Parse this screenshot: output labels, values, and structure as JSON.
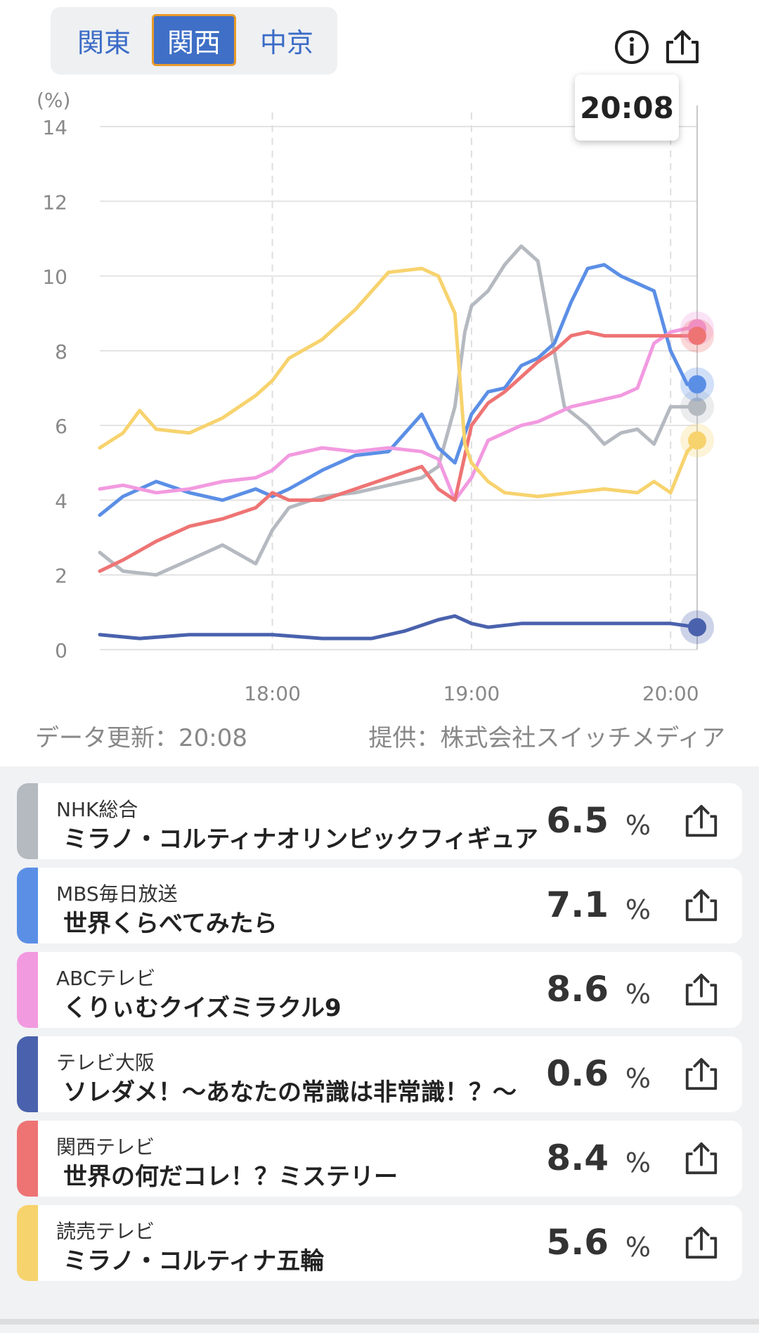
{
  "tabs": [
    {
      "label": "関東",
      "selected": false
    },
    {
      "label": "関西",
      "selected": true
    },
    {
      "label": "中京",
      "selected": false
    }
  ],
  "tooltip_time": "20:08",
  "footer": {
    "updated": "データ更新：20:08",
    "provider": "提供：株式会社スイッチメディア"
  },
  "chart_data": {
    "type": "line",
    "y_unit_label": "(%)",
    "ylim": [
      0,
      14
    ],
    "y_ticks": [
      0,
      2,
      4,
      6,
      8,
      10,
      12,
      14
    ],
    "x_ticks": [
      "18:00",
      "19:00",
      "20:00"
    ],
    "x_range": [
      "17:08",
      "20:08"
    ],
    "current_time": "20:08",
    "grid": true,
    "series": [
      {
        "name": "NHK総合",
        "color": "#b5b9c0",
        "x": [
          "17:08",
          "17:15",
          "17:25",
          "17:35",
          "17:45",
          "17:55",
          "18:00",
          "18:05",
          "18:15",
          "18:25",
          "18:35",
          "18:45",
          "18:50",
          "18:55",
          "18:58",
          "19:00",
          "19:05",
          "19:10",
          "19:15",
          "19:20",
          "19:28",
          "19:35",
          "19:40",
          "19:45",
          "19:50",
          "19:55",
          "20:00",
          "20:05",
          "20:08"
        ],
        "y": [
          2.6,
          2.1,
          2.0,
          2.4,
          2.8,
          2.3,
          3.2,
          3.8,
          4.1,
          4.2,
          4.4,
          4.6,
          4.9,
          6.5,
          8.5,
          9.2,
          9.6,
          10.3,
          10.8,
          10.4,
          6.5,
          6.0,
          5.5,
          5.8,
          5.9,
          5.5,
          6.5,
          6.5,
          6.5
        ]
      },
      {
        "name": "MBS毎日放送",
        "color": "#5b8fe6",
        "x": [
          "17:08",
          "17:15",
          "17:25",
          "17:35",
          "17:45",
          "17:55",
          "18:00",
          "18:05",
          "18:15",
          "18:25",
          "18:35",
          "18:45",
          "18:50",
          "18:55",
          "19:00",
          "19:05",
          "19:10",
          "19:15",
          "19:20",
          "19:25",
          "19:30",
          "19:35",
          "19:40",
          "19:45",
          "19:50",
          "19:55",
          "20:00",
          "20:05",
          "20:08"
        ],
        "y": [
          3.6,
          4.1,
          4.5,
          4.2,
          4.0,
          4.3,
          4.1,
          4.3,
          4.8,
          5.2,
          5.3,
          6.3,
          5.4,
          5.0,
          6.3,
          6.9,
          7.0,
          7.6,
          7.8,
          8.2,
          9.3,
          10.2,
          10.3,
          10.0,
          9.8,
          9.6,
          8.0,
          7.1,
          7.1
        ]
      },
      {
        "name": "ABCテレビ",
        "color": "#f29ae0",
        "x": [
          "17:08",
          "17:15",
          "17:25",
          "17:35",
          "17:45",
          "17:55",
          "18:00",
          "18:05",
          "18:15",
          "18:25",
          "18:35",
          "18:45",
          "18:50",
          "18:55",
          "19:00",
          "19:05",
          "19:10",
          "19:15",
          "19:20",
          "19:25",
          "19:30",
          "19:35",
          "19:40",
          "19:45",
          "19:50",
          "19:55",
          "20:00",
          "20:05",
          "20:08"
        ],
        "y": [
          4.3,
          4.4,
          4.2,
          4.3,
          4.5,
          4.6,
          4.8,
          5.2,
          5.4,
          5.3,
          5.4,
          5.3,
          5.1,
          4.0,
          4.6,
          5.6,
          5.8,
          6.0,
          6.1,
          6.3,
          6.5,
          6.6,
          6.7,
          6.8,
          7.0,
          8.2,
          8.5,
          8.6,
          8.6
        ]
      },
      {
        "name": "テレビ大阪",
        "color": "#4a62ad",
        "x": [
          "17:08",
          "17:20",
          "17:35",
          "17:50",
          "18:00",
          "18:15",
          "18:30",
          "18:40",
          "18:50",
          "18:55",
          "19:00",
          "19:05",
          "19:15",
          "19:30",
          "19:45",
          "20:00",
          "20:08"
        ],
        "y": [
          0.4,
          0.3,
          0.4,
          0.4,
          0.4,
          0.3,
          0.3,
          0.5,
          0.8,
          0.9,
          0.7,
          0.6,
          0.7,
          0.7,
          0.7,
          0.7,
          0.6
        ]
      },
      {
        "name": "関西テレビ",
        "color": "#ee7474",
        "x": [
          "17:08",
          "17:15",
          "17:25",
          "17:35",
          "17:45",
          "17:55",
          "18:00",
          "18:05",
          "18:15",
          "18:25",
          "18:35",
          "18:45",
          "18:50",
          "18:55",
          "19:00",
          "19:05",
          "19:10",
          "19:15",
          "19:20",
          "19:25",
          "19:30",
          "19:35",
          "19:40",
          "19:45",
          "19:50",
          "19:55",
          "20:00",
          "20:05",
          "20:08"
        ],
        "y": [
          2.1,
          2.4,
          2.9,
          3.3,
          3.5,
          3.8,
          4.2,
          4.0,
          4.0,
          4.3,
          4.6,
          4.9,
          4.3,
          4.0,
          6.0,
          6.6,
          6.9,
          7.3,
          7.7,
          8.0,
          8.4,
          8.5,
          8.4,
          8.4,
          8.4,
          8.4,
          8.4,
          8.4,
          8.4
        ]
      },
      {
        "name": "読売テレビ",
        "color": "#f7d36e",
        "x": [
          "17:08",
          "17:15",
          "17:20",
          "17:25",
          "17:35",
          "17:45",
          "17:55",
          "18:00",
          "18:05",
          "18:15",
          "18:25",
          "18:35",
          "18:45",
          "18:50",
          "18:55",
          "18:58",
          "19:00",
          "19:05",
          "19:10",
          "19:20",
          "19:30",
          "19:40",
          "19:50",
          "19:55",
          "20:00",
          "20:05",
          "20:08"
        ],
        "y": [
          5.4,
          5.8,
          6.4,
          5.9,
          5.8,
          6.2,
          6.8,
          7.2,
          7.8,
          8.3,
          9.1,
          10.1,
          10.2,
          10.0,
          9.0,
          5.5,
          5.0,
          4.5,
          4.2,
          4.1,
          4.2,
          4.3,
          4.2,
          4.5,
          4.2,
          5.3,
          5.6
        ]
      }
    ]
  },
  "channels": [
    {
      "station": "NHK総合",
      "program": "ミラノ・コルティナオリンピックフィギュア",
      "value": "6.5",
      "unit": "%",
      "color": "#b5b9c0"
    },
    {
      "station": "MBS毎日放送",
      "program": "世界くらべてみたら",
      "value": "7.1",
      "unit": "%",
      "color": "#5b8fe6"
    },
    {
      "station": "ABCテレビ",
      "program": "くりぃむクイズミラクル9",
      "value": "8.6",
      "unit": "%",
      "color": "#f29ae0"
    },
    {
      "station": "テレビ大阪",
      "program": "ソレダメ！～あなたの常識は非常識！？～",
      "value": "0.6",
      "unit": "%",
      "color": "#4a62ad"
    },
    {
      "station": "関西テレビ",
      "program": "世界の何だコレ！？ミステリー",
      "value": "8.4",
      "unit": "%",
      "color": "#ee7474"
    },
    {
      "station": "読売テレビ",
      "program": "ミラノ・コルティナ五輪",
      "value": "5.6",
      "unit": "%",
      "color": "#f7d36e"
    }
  ],
  "icons": {
    "info": "info-icon",
    "share": "share-icon"
  }
}
